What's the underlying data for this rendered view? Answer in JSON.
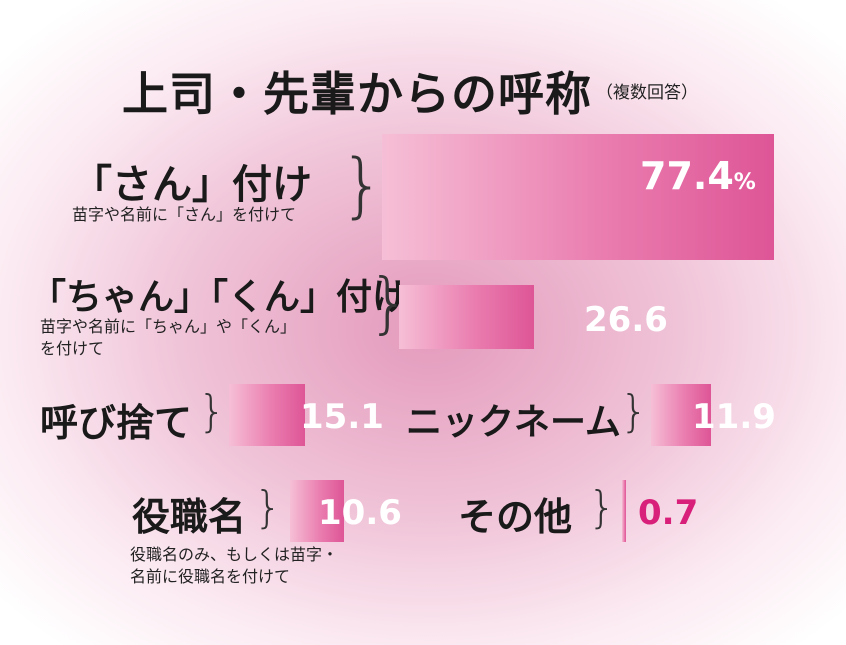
{
  "title": "上司・先輩からの呼称",
  "title_note": "（複数回答）",
  "chart_data": {
    "type": "bar",
    "title": "上司・先輩からの呼称",
    "subtitle": "（複数回答）",
    "unit": "%",
    "xlim": [
      0,
      77.4
    ],
    "categories": [
      "「さん」付け",
      "「ちゃん」「くん」付け",
      "呼び捨て",
      "ニックネーム",
      "役職名",
      "その他"
    ],
    "descriptions": [
      "苗字や名前に「さん」を付けて",
      "苗字や名前に「ちゃん」や「くん」を付けて",
      "",
      "",
      "役職名のみ、もしくは苗字・名前に役職名を付けて",
      ""
    ],
    "values": [
      77.4,
      26.6,
      15.1,
      11.9,
      10.6,
      0.7
    ],
    "value_labels": [
      "77.4",
      "26.6",
      "15.1",
      "11.9",
      "10.6",
      "0.7"
    ],
    "colors": {
      "bar_light": "#f6bfd6",
      "bar_dark": "#de5596",
      "small_value": "#d8207a"
    }
  }
}
